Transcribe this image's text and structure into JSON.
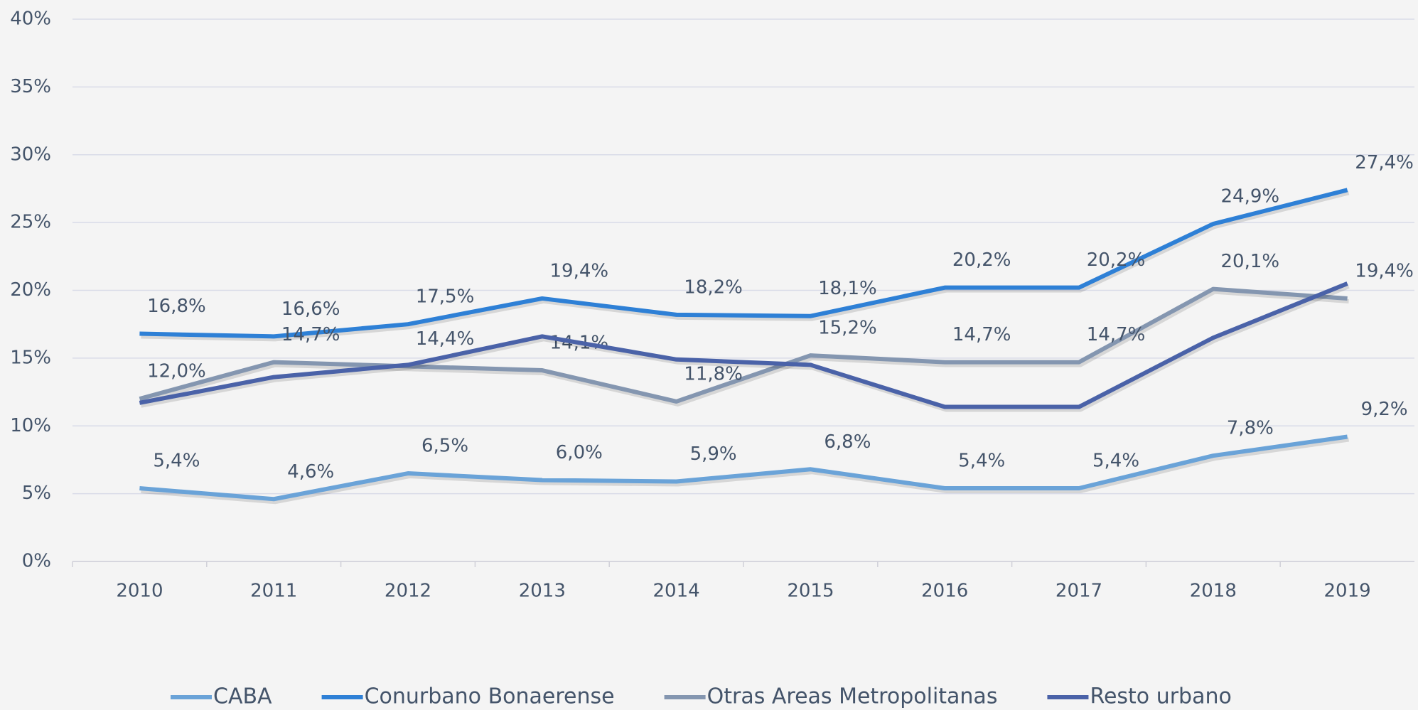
{
  "chart_data": {
    "type": "line",
    "categories": [
      "2010",
      "2011",
      "2012",
      "2013",
      "2014",
      "2015",
      "2016",
      "2017",
      "2018",
      "2019"
    ],
    "series": [
      {
        "name": "CABA",
        "color": "#6aa3d8",
        "values": [
          5.4,
          4.6,
          6.5,
          6.0,
          5.9,
          6.8,
          5.4,
          5.4,
          7.8,
          9.2
        ],
        "value_labels": [
          "5,4%",
          "4,6%",
          "6,5%",
          "6,0%",
          "5,9%",
          "6,8%",
          "5,4%",
          "5,4%",
          "7,8%",
          "9,2%"
        ]
      },
      {
        "name": "Conurbano Bonaerense",
        "color": "#2e80d6",
        "values": [
          16.8,
          16.6,
          17.5,
          19.4,
          18.2,
          18.1,
          20.2,
          20.2,
          24.9,
          27.4
        ],
        "value_labels": [
          "16,8%",
          "16,6%",
          "17,5%",
          "19,4%",
          "18,2%",
          "18,1%",
          "20,2%",
          "20,2%",
          "24,9%",
          "27,4%"
        ]
      },
      {
        "name": "Otras Areas Metropolitanas",
        "color": "#8496b0",
        "values": [
          12.0,
          14.7,
          14.4,
          14.1,
          11.8,
          15.2,
          14.7,
          14.7,
          20.1,
          19.4
        ],
        "value_labels": [
          "12,0%",
          "14,7%",
          "14,4%",
          "14,1%",
          "11,8%",
          "15,2%",
          "14,7%",
          "14,7%",
          "20,1%",
          "19,4%"
        ]
      },
      {
        "name": "Resto urbano",
        "color": "#4a62a8",
        "values": [
          11.7,
          13.6,
          14.5,
          16.6,
          14.9,
          14.5,
          11.4,
          11.4,
          16.5,
          20.5
        ]
      }
    ],
    "ylim": [
      0,
      40
    ],
    "yticks": [
      {
        "value": 0,
        "label": "0%"
      },
      {
        "value": 5,
        "label": "5%"
      },
      {
        "value": 10,
        "label": "10%"
      },
      {
        "value": 15,
        "label": "15%"
      },
      {
        "value": 20,
        "label": "20%"
      },
      {
        "value": 25,
        "label": "25%"
      },
      {
        "value": 30,
        "label": "30%"
      },
      {
        "value": 35,
        "label": "35%"
      },
      {
        "value": 40,
        "label": "40%"
      }
    ],
    "grid": true,
    "legend": "bottom"
  }
}
